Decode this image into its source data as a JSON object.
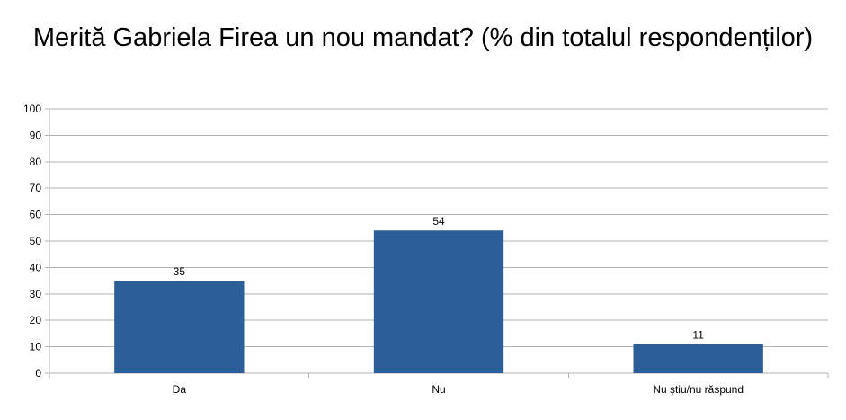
{
  "chart_data": {
    "type": "bar",
    "title": "Merită Gabriela Firea un nou mandat? (% din totalul respondenților)",
    "categories": [
      "Da",
      "Nu",
      "Nu știu/nu răspund"
    ],
    "values": [
      35,
      54,
      11
    ],
    "data_labels": [
      "35",
      "54",
      "11"
    ],
    "ylim": [
      0,
      100
    ],
    "yticks": [
      0,
      10,
      20,
      30,
      40,
      50,
      60,
      70,
      80,
      90,
      100
    ],
    "xlabel": "",
    "ylabel": "",
    "grid": true,
    "legend": "none",
    "bar_color": "#2c5f98",
    "grid_color": "#b3b3b3"
  }
}
